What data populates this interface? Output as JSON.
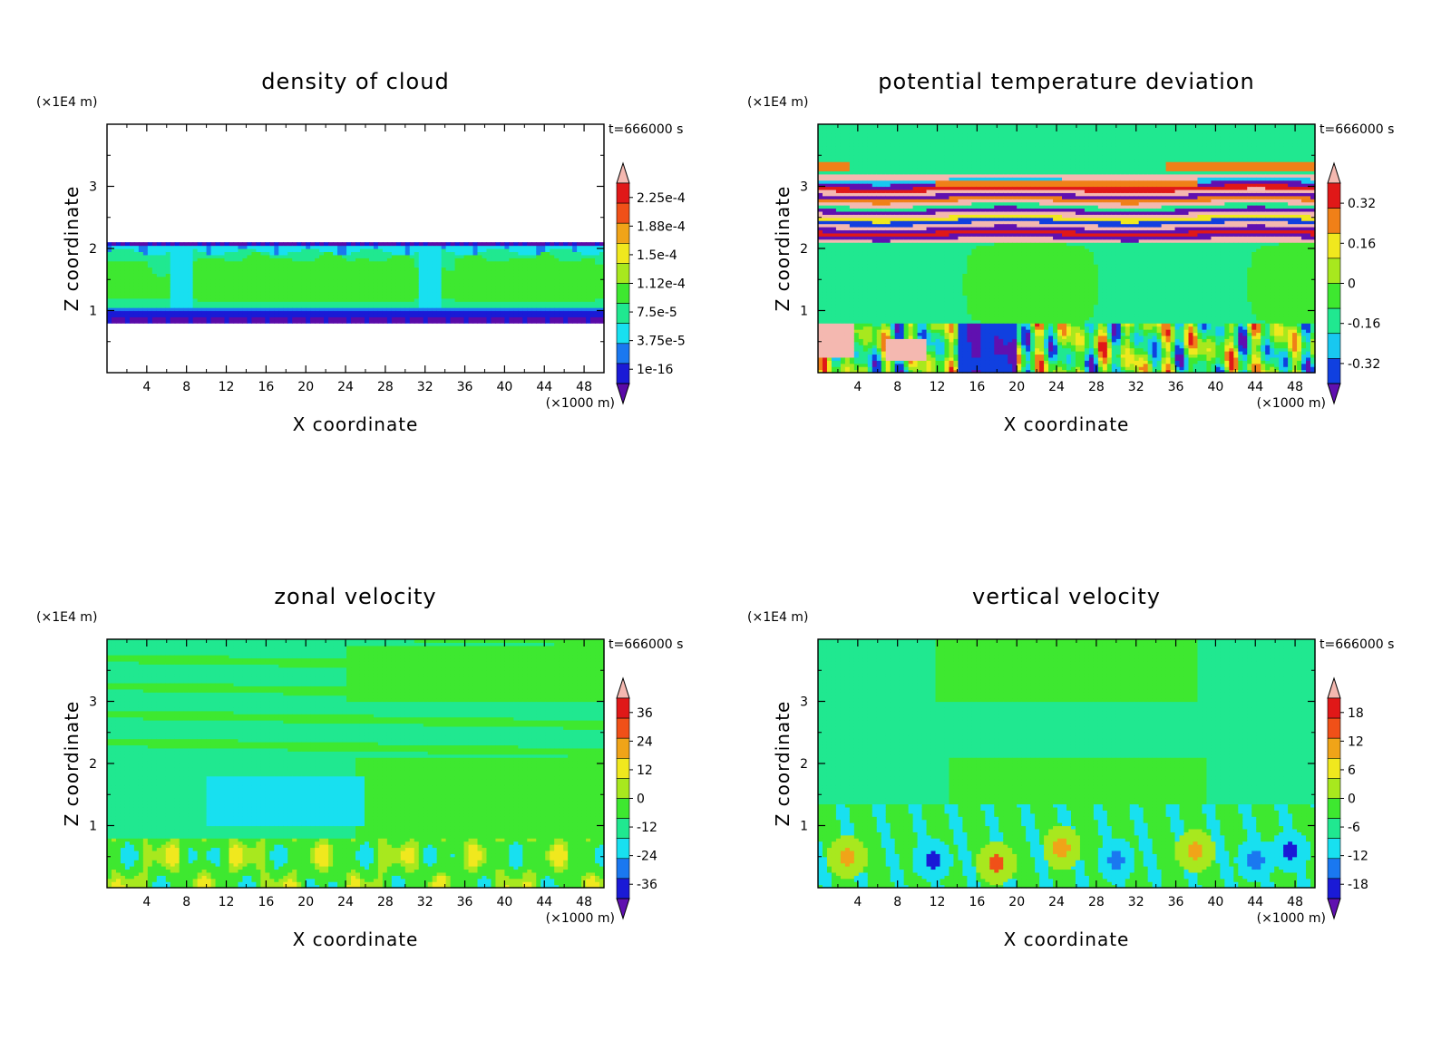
{
  "chart_data": [
    {
      "type": "heatmap",
      "title": "density of cloud",
      "xlabel": "X coordinate",
      "ylabel": "Z coordinate",
      "x_unit": "(×1000 m)",
      "y_unit": "(×1E4 m)",
      "time_label": "t=666000 s",
      "xlim": [
        0,
        50
      ],
      "ylim": [
        0,
        4
      ],
      "x_ticks": [
        "4",
        "8",
        "12",
        "16",
        "20",
        "24",
        "28",
        "32",
        "36",
        "40",
        "44",
        "48"
      ],
      "y_ticks": [
        "1",
        "2",
        "3"
      ],
      "colorbar": [
        "1e-16",
        "3.75e-5",
        "7.5e-5",
        "1.12e-4",
        "1.5e-4",
        "1.88e-4",
        "2.25e-4"
      ],
      "colors": [
        "#5a0aa8",
        "#1a1ad6",
        "#1a78f0",
        "#18e0f0",
        "#20e890",
        "#3ee830",
        "#a8e81e",
        "#f0e81e",
        "#f0a418",
        "#f05018",
        "#e01818",
        "#f4b8b0"
      ],
      "field": "cloud"
    },
    {
      "type": "heatmap",
      "title": "potential temperature deviation",
      "xlabel": "X coordinate",
      "ylabel": "Z coordinate",
      "x_unit": "(×1000 m)",
      "y_unit": "(×1E4 m)",
      "time_label": "t=666000 s",
      "xlim": [
        0,
        50
      ],
      "ylim": [
        0,
        4
      ],
      "x_ticks": [
        "4",
        "8",
        "12",
        "16",
        "20",
        "24",
        "28",
        "32",
        "36",
        "40",
        "44",
        "48"
      ],
      "y_ticks": [
        "1",
        "2",
        "3"
      ],
      "colorbar": [
        "-0.32",
        "-0.16",
        "0",
        "0.16",
        "0.32"
      ],
      "colors": [
        "#6010b0",
        "#1040e0",
        "#18c8f0",
        "#20e890",
        "#3ee830",
        "#a8e81e",
        "#f0e81e",
        "#f08018",
        "#e01818",
        "#f4b8b0"
      ],
      "field": "theta"
    },
    {
      "type": "heatmap",
      "title": "zonal velocity",
      "xlabel": "X coordinate",
      "ylabel": "Z coordinate",
      "x_unit": "(×1000 m)",
      "y_unit": "(×1E4 m)",
      "time_label": "t=666000 s",
      "xlim": [
        0,
        50
      ],
      "ylim": [
        0,
        4
      ],
      "x_ticks": [
        "4",
        "8",
        "12",
        "16",
        "20",
        "24",
        "28",
        "32",
        "36",
        "40",
        "44",
        "48"
      ],
      "y_ticks": [
        "1",
        "2",
        "3"
      ],
      "colorbar": [
        "-36",
        "-24",
        "-12",
        "0",
        "12",
        "24",
        "36"
      ],
      "colors": [
        "#6010b0",
        "#1a1ad6",
        "#1a78f0",
        "#18e0f0",
        "#20e890",
        "#3ee830",
        "#a8e81e",
        "#f0e81e",
        "#f0a418",
        "#f05018",
        "#e01818",
        "#f4b8b0"
      ],
      "field": "u"
    },
    {
      "type": "heatmap",
      "title": "vertical velocity",
      "xlabel": "X coordinate",
      "ylabel": "Z coordinate",
      "x_unit": "(×1000 m)",
      "y_unit": "(×1E4 m)",
      "time_label": "t=666000 s",
      "xlim": [
        0,
        50
      ],
      "ylim": [
        0,
        4
      ],
      "x_ticks": [
        "4",
        "8",
        "12",
        "16",
        "20",
        "24",
        "28",
        "32",
        "36",
        "40",
        "44",
        "48"
      ],
      "y_ticks": [
        "1",
        "2",
        "3"
      ],
      "colorbar": [
        "-18",
        "-12",
        "-6",
        "0",
        "6",
        "12",
        "18"
      ],
      "colors": [
        "#6010b0",
        "#1a1ad6",
        "#1a78f0",
        "#18e0f0",
        "#20e890",
        "#3ee830",
        "#a8e81e",
        "#f0e81e",
        "#f0a418",
        "#f05018",
        "#e01818",
        "#f4b8b0"
      ],
      "field": "w"
    }
  ]
}
